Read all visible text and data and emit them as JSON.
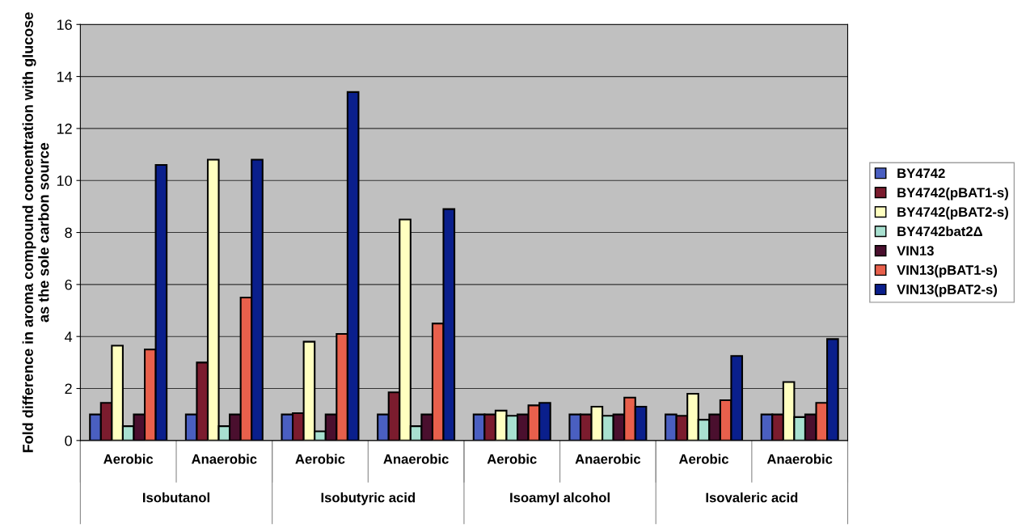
{
  "chart_data": {
    "type": "bar",
    "ylabel": "Fold difference in aroma compound concentration with glucose\nas the sole carbon source",
    "categories": [
      "Aerobic",
      "Anaerobic",
      "Aerobic",
      "Anaerobic",
      "Aerobic",
      "Anaerobic",
      "Aerobic",
      "Anaerobic"
    ],
    "annotations": [
      "Isobutanol",
      "Isobutyric acid",
      "Isoamyl alcohol",
      "Isovaleric acid"
    ],
    "series": [
      {
        "name": "BY4742",
        "color": "#4a5fc1",
        "values": [
          1,
          1,
          1,
          1,
          1,
          1,
          1,
          1
        ]
      },
      {
        "name": "BY4742(pBAT1-s)",
        "color": "#7b1c2e",
        "values": [
          1.45,
          3.0,
          1.05,
          1.85,
          1.0,
          1.0,
          0.95,
          1.0
        ]
      },
      {
        "name": "BY4742(pBAT2-s)",
        "color": "#ffffc0",
        "values": [
          3.65,
          10.8,
          3.8,
          8.5,
          1.15,
          1.3,
          1.8,
          2.25
        ]
      },
      {
        "name": "BY4742bat2Δ",
        "color": "#a8e0d0",
        "values": [
          0.55,
          0.55,
          0.35,
          0.55,
          0.95,
          0.95,
          0.8,
          0.9
        ]
      },
      {
        "name": "VIN13",
        "color": "#4a0f2e",
        "values": [
          1,
          1,
          1,
          1,
          1,
          1,
          1,
          1
        ]
      },
      {
        "name": "VIN13(pBAT1-s)",
        "color": "#e8604c",
        "values": [
          3.5,
          5.5,
          4.1,
          4.5,
          1.35,
          1.65,
          1.55,
          1.45
        ]
      },
      {
        "name": "VIN13(pBAT2-s)",
        "color": "#0a1f8c",
        "values": [
          10.6,
          10.8,
          13.4,
          8.9,
          1.45,
          1.3,
          3.25,
          3.9
        ]
      }
    ],
    "ylim": [
      0,
      16
    ],
    "yticks": [
      0,
      2,
      4,
      6,
      8,
      10,
      12,
      14,
      16
    ],
    "grid": "y",
    "legend": "right"
  }
}
